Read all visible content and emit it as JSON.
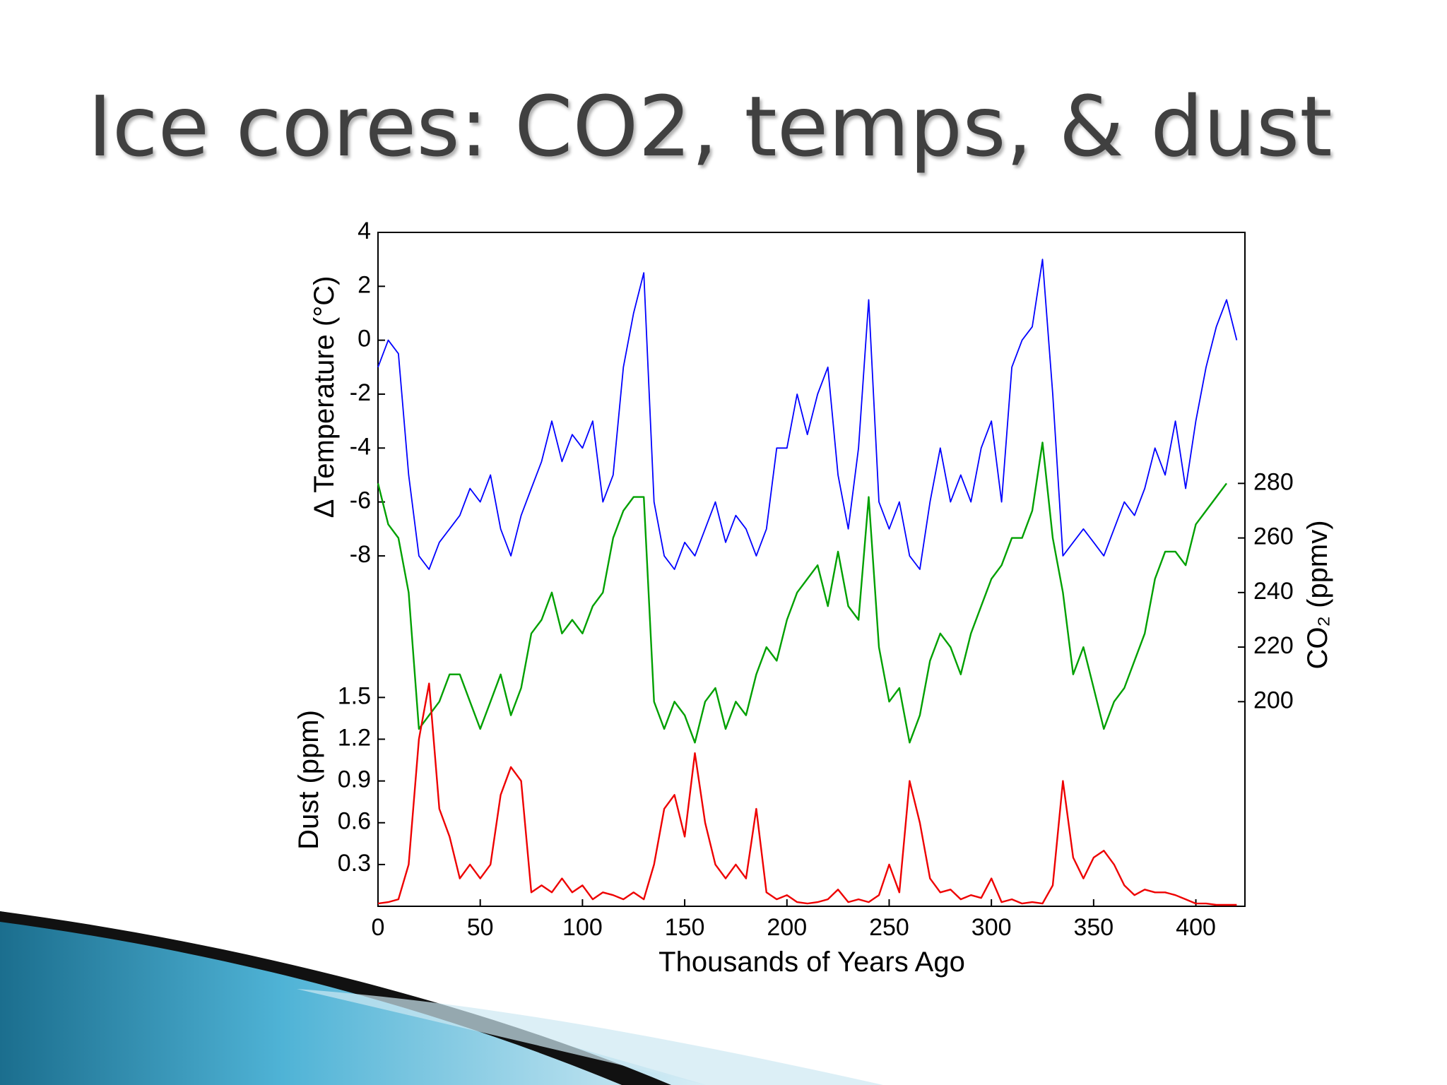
{
  "slide_title": "Ice cores: CO2, temps, & dust",
  "chart_data": {
    "type": "line",
    "xlabel": "Thousands of Years Ago",
    "ylabel": "Δ Temperature (°C)",
    "y2label": "CO₂ (ppmv)",
    "y3label": "Dust (ppm)",
    "xlim": [
      0,
      424
    ],
    "xticks": [
      0,
      50,
      100,
      150,
      200,
      250,
      300,
      350,
      400
    ],
    "ylim": [
      -21,
      4
    ],
    "yticks": [
      4,
      2,
      0,
      -2,
      -4,
      -6,
      -8
    ],
    "y2lim": [
      125,
      372
    ],
    "y2ticks": [
      200,
      220,
      240,
      260,
      280
    ],
    "y3lim": [
      0,
      4.84
    ],
    "y3ticks": [
      0.3,
      0.6,
      0.9,
      1.2,
      1.5
    ],
    "x": [
      0,
      5,
      10,
      15,
      20,
      25,
      30,
      35,
      40,
      45,
      50,
      55,
      60,
      65,
      70,
      75,
      80,
      85,
      90,
      95,
      100,
      105,
      110,
      115,
      120,
      125,
      130,
      135,
      140,
      145,
      150,
      155,
      160,
      165,
      170,
      175,
      180,
      185,
      190,
      195,
      200,
      205,
      210,
      215,
      220,
      225,
      230,
      235,
      240,
      245,
      250,
      255,
      260,
      265,
      270,
      275,
      280,
      285,
      290,
      295,
      300,
      305,
      310,
      315,
      320,
      325,
      330,
      335,
      340,
      345,
      350,
      355,
      360,
      365,
      370,
      375,
      380,
      385,
      390,
      395,
      400,
      405,
      410,
      415,
      420
    ],
    "series": [
      {
        "name": "Temperature",
        "axis": "y",
        "color": "#0000ff",
        "values": [
          -1,
          0,
          -0.5,
          -5,
          -8,
          -8.5,
          -7.5,
          -7,
          -6.5,
          -5.5,
          -6,
          -5,
          -7,
          -8,
          -6.5,
          -5.5,
          -4.5,
          -3,
          -4.5,
          -3.5,
          -4,
          -3,
          -6,
          -5,
          -1,
          1,
          2.5,
          -6,
          -8,
          -8.5,
          -7.5,
          -8,
          -7,
          -6,
          -7.5,
          -6.5,
          -7,
          -8,
          -7,
          -4,
          -4,
          -2,
          -3.5,
          -2,
          -1,
          -5,
          -7,
          -4,
          1.5,
          -6,
          -7,
          -6,
          -8,
          -8.5,
          -6,
          -4,
          -6,
          -5,
          -6,
          -4,
          -3,
          -6,
          -1,
          0,
          0.5,
          3,
          -2,
          -8,
          -7.5,
          -7,
          -7.5,
          -8,
          -7,
          -6,
          -6.5,
          -5.5,
          -4,
          -5,
          -3,
          -5.5,
          -3,
          -1,
          0.5,
          1.5,
          0
        ]
      },
      {
        "name": "CO2",
        "axis": "y2",
        "color": "#00a000",
        "values": [
          280,
          265,
          260,
          240,
          190,
          195,
          200,
          210,
          210,
          200,
          190,
          200,
          210,
          195,
          205,
          225,
          230,
          240,
          225,
          230,
          225,
          235,
          240,
          260,
          270,
          275,
          275,
          200,
          190,
          200,
          195,
          185,
          200,
          205,
          190,
          200,
          195,
          210,
          220,
          215,
          230,
          240,
          245,
          250,
          235,
          255,
          235,
          230,
          275,
          220,
          200,
          205,
          185,
          195,
          215,
          225,
          220,
          210,
          225,
          235,
          245,
          250,
          260,
          260,
          270,
          295,
          260,
          240,
          210,
          220,
          205,
          190,
          200,
          205,
          215,
          225,
          245,
          255,
          255,
          250,
          265,
          270,
          275,
          280,
          null
        ]
      },
      {
        "name": "Dust",
        "axis": "y3",
        "color": "#ee0000",
        "values": [
          0.02,
          0.03,
          0.05,
          0.3,
          1.2,
          1.6,
          0.7,
          0.5,
          0.2,
          0.3,
          0.2,
          0.3,
          0.8,
          1.0,
          0.9,
          0.1,
          0.15,
          0.1,
          0.2,
          0.1,
          0.15,
          0.05,
          0.1,
          0.08,
          0.05,
          0.1,
          0.05,
          0.3,
          0.7,
          0.8,
          0.5,
          1.1,
          0.6,
          0.3,
          0.2,
          0.3,
          0.2,
          0.7,
          0.1,
          0.05,
          0.08,
          0.03,
          0.02,
          0.03,
          0.05,
          0.12,
          0.03,
          0.05,
          0.03,
          0.08,
          0.3,
          0.1,
          0.9,
          0.6,
          0.2,
          0.1,
          0.12,
          0.05,
          0.08,
          0.06,
          0.2,
          0.03,
          0.05,
          0.02,
          0.03,
          0.02,
          0.15,
          0.9,
          0.35,
          0.2,
          0.35,
          0.4,
          0.3,
          0.15,
          0.08,
          0.12,
          0.1,
          0.1,
          0.08,
          0.05,
          0.02,
          0.02,
          0.01,
          0.01,
          0.01
        ]
      }
    ]
  }
}
